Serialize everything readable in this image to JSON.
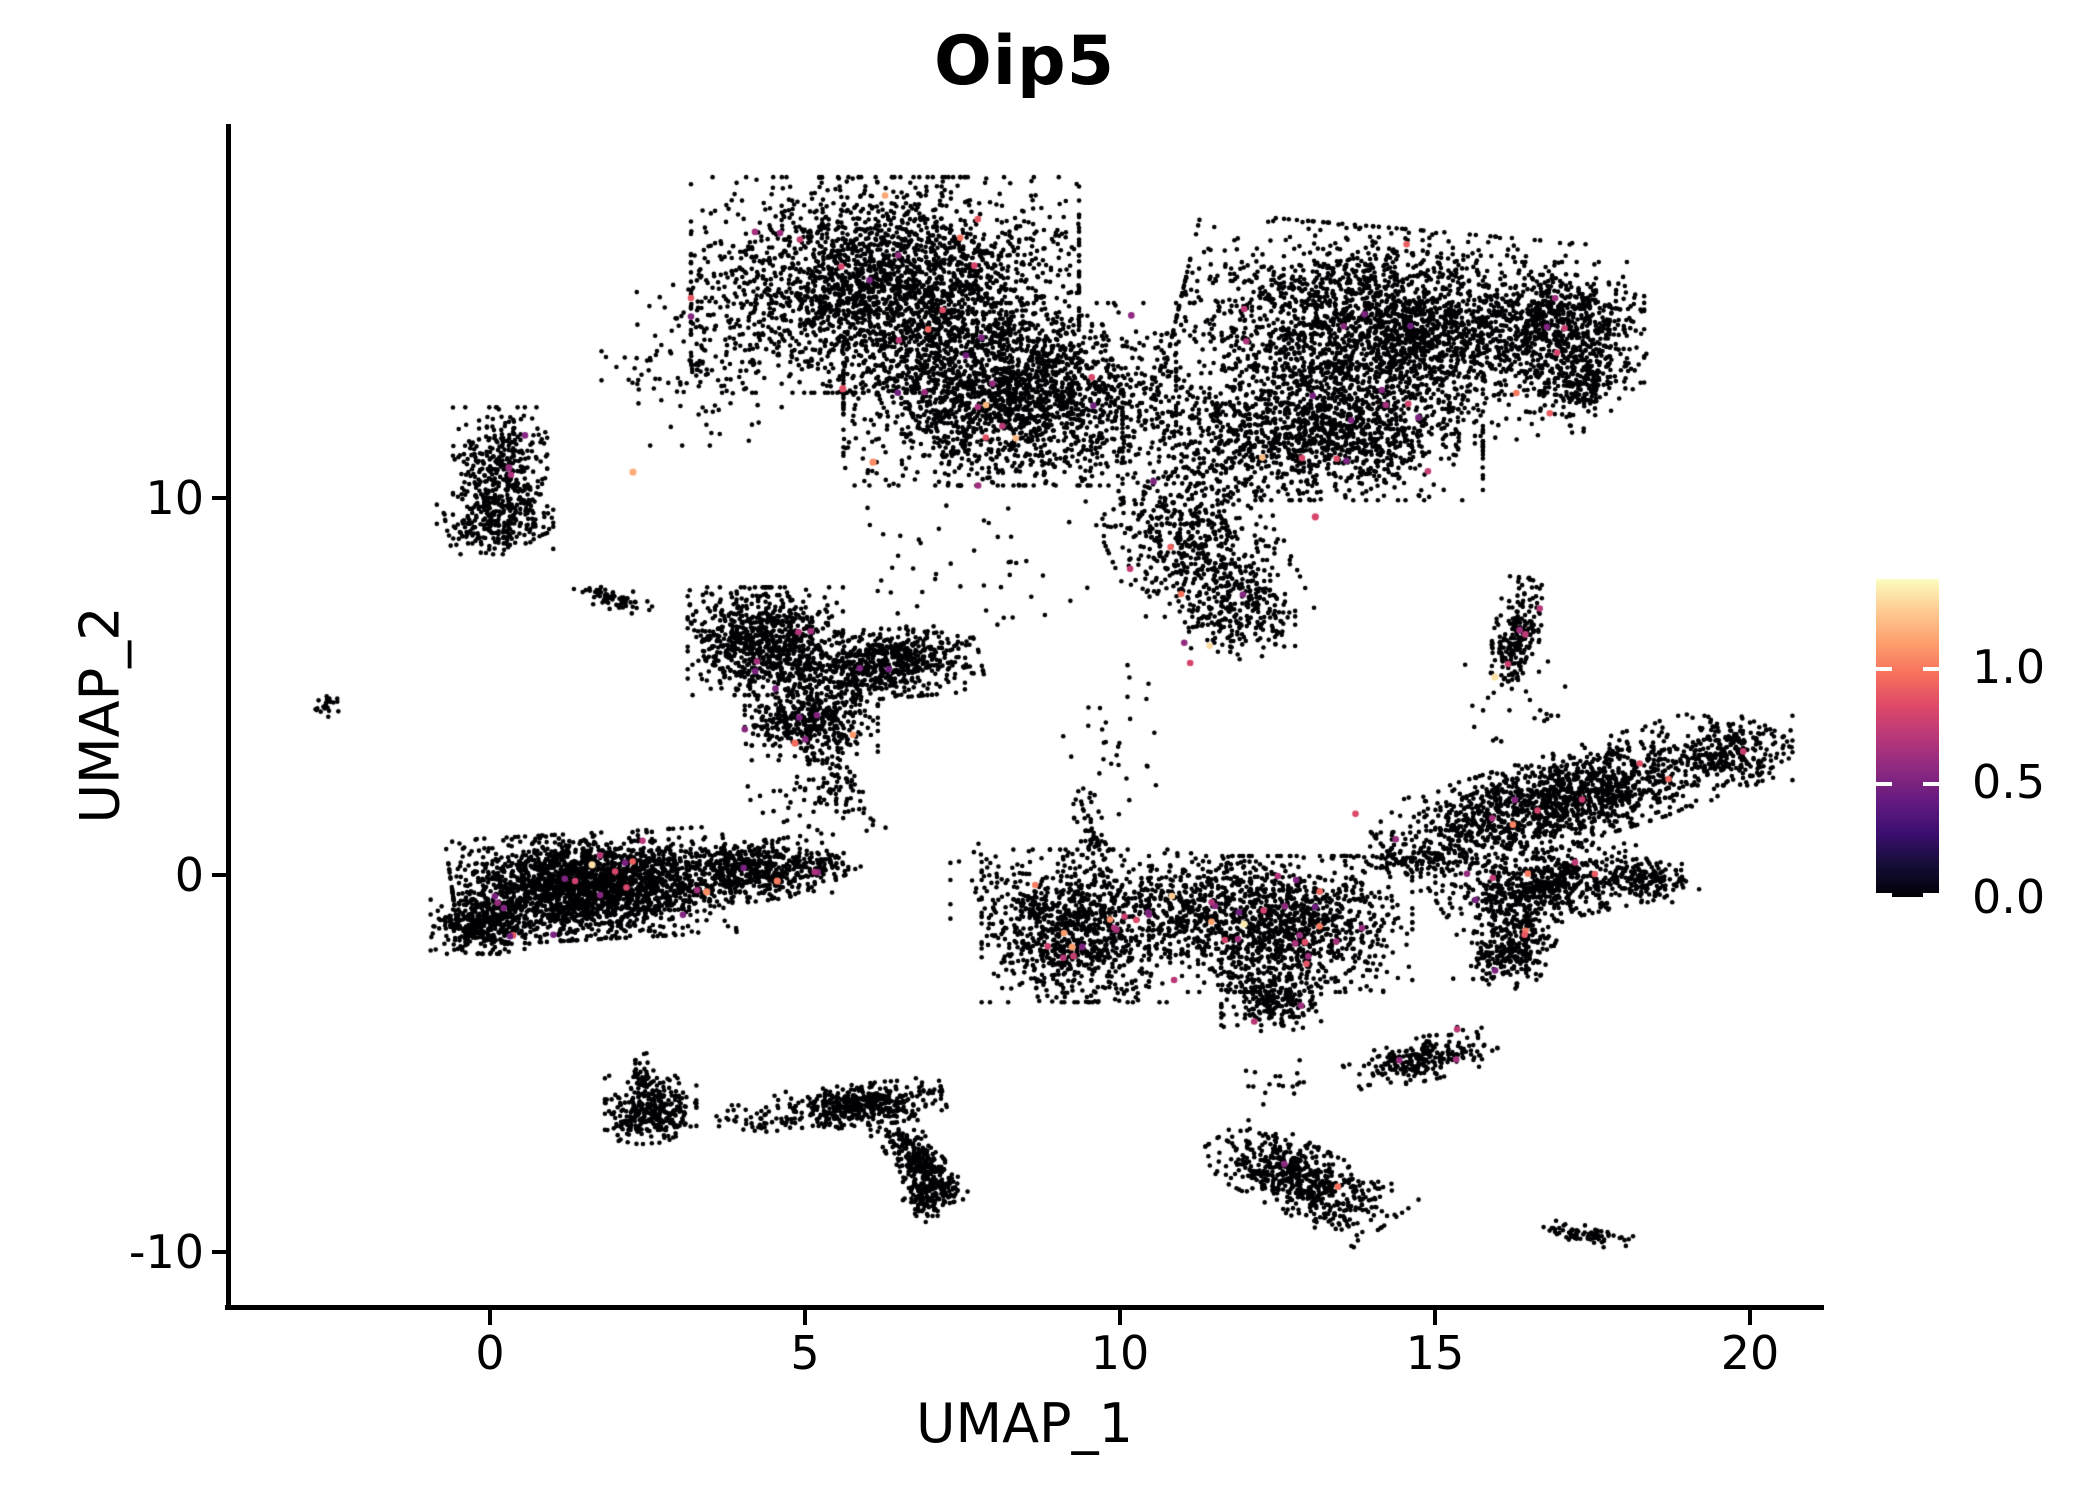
{
  "title": "Oip5",
  "axes": {
    "x_label": "UMAP_1",
    "y_label": "UMAP_2",
    "x_tick_labels": [
      "0",
      "5",
      "10",
      "15",
      "20"
    ],
    "x_tick_values": [
      0,
      5,
      10,
      15,
      20
    ],
    "y_tick_labels": [
      "10",
      "0",
      "-10"
    ],
    "y_tick_values": [
      10,
      0,
      -10
    ]
  },
  "colorbar": {
    "tick_labels": [
      "1.0",
      "0.5",
      "0.0"
    ],
    "tick_values": [
      1.0,
      0.5,
      0.0
    ],
    "vmin": 0.0,
    "vmax": 1.38,
    "colormap": "magma",
    "stops": [
      [
        0.0,
        "#000004"
      ],
      [
        0.1,
        "#140e36"
      ],
      [
        0.2,
        "#3b0f70"
      ],
      [
        0.3,
        "#641a80"
      ],
      [
        0.4,
        "#8c2981"
      ],
      [
        0.5,
        "#b73779"
      ],
      [
        0.6,
        "#de4968"
      ],
      [
        0.7,
        "#f7705c"
      ],
      [
        0.8,
        "#fe9f6d"
      ],
      [
        0.9,
        "#fecb92"
      ],
      [
        1.0,
        "#fcfdbf"
      ]
    ]
  },
  "style": {
    "background": "#ffffff",
    "axis_color": "#000000",
    "zero_point_color": "#000004"
  },
  "chart_data": {
    "type": "scatter",
    "title": "Oip5",
    "xlabel": "UMAP_1",
    "ylabel": "UMAP_2",
    "xlim": [
      -4.15,
      21.15
    ],
    "ylim": [
      -11.45,
      19.9
    ],
    "grid": false,
    "legend_position": "right-colorbar",
    "color_scale": {
      "min": 0.0,
      "max": 1.38,
      "colormap": "magma"
    },
    "n_points": 24800,
    "representation": "UMAP embedding approximated as gaussian clusters; most cells have expression 0 (black), sparse cells colored by expression",
    "clusters": [
      {
        "cx": 6.27,
        "cy": 15.65,
        "sx": 1.4,
        "sy": 1.3,
        "rot": 0,
        "n": 2600,
        "cf": 0.006
      },
      {
        "cx": 8.25,
        "cy": 12.75,
        "sx": 1.2,
        "sy": 1.1,
        "rot": 0,
        "n": 2100,
        "cf": 0.006
      },
      {
        "cx": 14.3,
        "cy": 14.5,
        "sx": 1.55,
        "sy": 1.2,
        "rot": -8,
        "n": 2600,
        "cf": 0.005
      },
      {
        "cx": 12.9,
        "cy": 11.7,
        "sx": 1.3,
        "sy": 0.8,
        "rot": 0,
        "n": 1400,
        "cf": 0.005
      },
      {
        "cx": 17.0,
        "cy": 14.5,
        "sx": 0.6,
        "sy": 0.8,
        "rot": 0,
        "n": 600,
        "cf": 0.004
      },
      {
        "cx": 17.4,
        "cy": 13.0,
        "sx": 0.28,
        "sy": 0.5,
        "rot": -20,
        "n": 160,
        "cf": 0
      },
      {
        "cx": 11.2,
        "cy": 8.75,
        "sx": 0.63,
        "sy": 0.95,
        "rot": 15,
        "n": 550,
        "cf": 0.01
      },
      {
        "cx": 11.9,
        "cy": 6.9,
        "sx": 0.4,
        "sy": 0.58,
        "rot": 0,
        "n": 220,
        "cf": 0.012
      },
      {
        "cx": 3.2,
        "cy": 13.7,
        "sx": 0.65,
        "sy": 1.05,
        "rot": 0,
        "n": 130,
        "cf": 0
      },
      {
        "cx": 0.16,
        "cy": 10.6,
        "sx": 0.34,
        "sy": 0.82,
        "rot": 0,
        "n": 420,
        "cf": 0.006
      },
      {
        "cx": 0.08,
        "cy": 9.3,
        "sx": 0.42,
        "sy": 0.36,
        "rot": 0,
        "n": 180,
        "cf": 0
      },
      {
        "cx": -2.57,
        "cy": 4.5,
        "sx": 0.1,
        "sy": 0.16,
        "rot": -25,
        "n": 22,
        "cf": 0
      },
      {
        "cx": 4.37,
        "cy": 6.2,
        "sx": 0.56,
        "sy": 0.65,
        "rot": 0,
        "n": 800,
        "cf": 0.006
      },
      {
        "cx": 6.2,
        "cy": 5.6,
        "sx": 0.72,
        "sy": 0.42,
        "rot": 8,
        "n": 700,
        "cf": 0.004
      },
      {
        "cx": 5.1,
        "cy": 4.1,
        "sx": 0.48,
        "sy": 0.48,
        "rot": 0,
        "n": 450,
        "cf": 0.007
      },
      {
        "cx": 5.5,
        "cy": 2.3,
        "sx": 0.25,
        "sy": 0.55,
        "rot": 15,
        "n": 80,
        "cf": 0
      },
      {
        "cx": 1.95,
        "cy": 7.35,
        "sx": 0.3,
        "sy": 0.13,
        "rot": -25,
        "n": 70,
        "cf": 0
      },
      {
        "cx": 1.6,
        "cy": -0.3,
        "sx": 1.0,
        "sy": 0.64,
        "rot": 5,
        "n": 2400,
        "cf": 0.004
      },
      {
        "cx": -0.15,
        "cy": -1.3,
        "sx": 0.36,
        "sy": 0.36,
        "rot": 0,
        "n": 350,
        "cf": 0.003
      },
      {
        "cx": 4.2,
        "cy": 0.1,
        "sx": 0.56,
        "sy": 0.36,
        "rot": 10,
        "n": 550,
        "cf": 0.005
      },
      {
        "cx": 5.4,
        "cy": 0.3,
        "sx": 0.22,
        "sy": 0.22,
        "rot": 0,
        "n": 45,
        "cf": 0
      },
      {
        "cx": 9.3,
        "cy": -1.35,
        "sx": 0.68,
        "sy": 0.92,
        "rot": 0,
        "n": 1000,
        "cf": 0.012
      },
      {
        "cx": 9.55,
        "cy": 1.2,
        "sx": 0.1,
        "sy": 0.62,
        "rot": 10,
        "n": 55,
        "cf": 0
      },
      {
        "cx": 12.55,
        "cy": -1.3,
        "sx": 0.95,
        "sy": 0.82,
        "rot": 0,
        "n": 1300,
        "cf": 0.018
      },
      {
        "cx": 12.4,
        "cy": -3.3,
        "sx": 0.36,
        "sy": 0.38,
        "rot": 0,
        "n": 220,
        "cf": 0.02
      },
      {
        "cx": 17.0,
        "cy": 2.0,
        "sx": 1.4,
        "sy": 0.52,
        "rot": 27,
        "n": 1500,
        "cf": 0.008
      },
      {
        "cx": 19.75,
        "cy": 3.3,
        "sx": 0.42,
        "sy": 0.42,
        "rot": 0,
        "n": 240,
        "cf": 0.004
      },
      {
        "cx": 16.75,
        "cy": -0.3,
        "sx": 0.8,
        "sy": 0.42,
        "rot": 20,
        "n": 650,
        "cf": 0.01
      },
      {
        "cx": 18.4,
        "cy": -0.15,
        "sx": 0.36,
        "sy": 0.26,
        "rot": 0,
        "n": 140,
        "cf": 0
      },
      {
        "cx": 16.2,
        "cy": -1.9,
        "sx": 0.3,
        "sy": 0.48,
        "rot": -15,
        "n": 280,
        "cf": 0.01
      },
      {
        "cx": 14.85,
        "cy": 0.4,
        "sx": 0.58,
        "sy": 0.2,
        "rot": 5,
        "n": 120,
        "cf": 0.01
      },
      {
        "cx": 11.0,
        "cy": -0.7,
        "sx": 0.48,
        "sy": 0.58,
        "rot": 0,
        "n": 170,
        "cf": 0.012
      },
      {
        "cx": 16.3,
        "cy": 6.4,
        "sx": 0.17,
        "sy": 0.68,
        "rot": -8,
        "n": 220,
        "cf": 0.015
      },
      {
        "cx": 14.8,
        "cy": -4.9,
        "sx": 0.55,
        "sy": 0.25,
        "rot": 25,
        "n": 240,
        "cf": 0.006
      },
      {
        "cx": 2.55,
        "cy": -6.25,
        "sx": 0.33,
        "sy": 0.42,
        "rot": 0,
        "n": 330,
        "cf": 0.004
      },
      {
        "cx": 2.4,
        "cy": -5.3,
        "sx": 0.09,
        "sy": 0.26,
        "rot": 0,
        "n": 40,
        "cf": 0
      },
      {
        "cx": 4.3,
        "cy": -6.5,
        "sx": 0.32,
        "sy": 0.2,
        "rot": 0,
        "n": 50,
        "cf": 0
      },
      {
        "cx": 5.9,
        "cy": -6.1,
        "sx": 0.6,
        "sy": 0.25,
        "rot": 10,
        "n": 450,
        "cf": 0
      },
      {
        "cx": 6.8,
        "cy": -7.6,
        "sx": 0.55,
        "sy": 0.18,
        "rot": -65,
        "n": 280,
        "cf": 0
      },
      {
        "cx": 6.95,
        "cy": -8.5,
        "sx": 0.18,
        "sy": 0.32,
        "rot": 0,
        "n": 130,
        "cf": 0
      },
      {
        "cx": 12.9,
        "cy": -8.1,
        "sx": 0.8,
        "sy": 0.38,
        "rot": -40,
        "n": 600,
        "cf": 0.003
      },
      {
        "cx": 17.4,
        "cy": -9.55,
        "sx": 0.33,
        "sy": 0.11,
        "rot": -15,
        "n": 80,
        "cf": 0
      },
      {
        "cx": 7.5,
        "cy": 8.3,
        "sx": 1.3,
        "sy": 1.0,
        "rot": 0,
        "n": 50,
        "cf": 0
      },
      {
        "cx": 9.8,
        "cy": 3.7,
        "sx": 0.35,
        "sy": 0.95,
        "rot": 0,
        "n": 30,
        "cf": 0
      },
      {
        "cx": 4.9,
        "cy": 1.7,
        "sx": 0.5,
        "sy": 0.45,
        "rot": 0,
        "n": 28,
        "cf": 0
      },
      {
        "cx": 16.5,
        "cy": 4.6,
        "sx": 0.5,
        "sy": 0.8,
        "rot": 0,
        "n": 22,
        "cf": 0
      },
      {
        "cx": 8.1,
        "cy": -0.15,
        "sx": 0.36,
        "sy": 0.52,
        "rot": 0,
        "n": 40,
        "cf": 0.01
      },
      {
        "cx": 12.6,
        "cy": -5.5,
        "sx": 0.32,
        "sy": 0.32,
        "rot": 0,
        "n": 18,
        "cf": 0
      }
    ],
    "highlight_points": [
      {
        "x": 1.62,
        "y": 0.27,
        "value": 1.3
      },
      {
        "x": 3.44,
        "y": -0.45,
        "value": 1.05
      },
      {
        "x": 4.56,
        "y": -0.16,
        "value": 1.0
      },
      {
        "x": 6.08,
        "y": 10.95,
        "value": 1.05
      },
      {
        "x": 2.27,
        "y": 10.69,
        "value": 1.15
      },
      {
        "x": 9.24,
        "y": -1.91,
        "value": 1.1
      },
      {
        "x": 4.84,
        "y": 3.5,
        "value": 0.95
      },
      {
        "x": 11.97,
        "y": -1.3,
        "value": 1.33
      },
      {
        "x": 15.95,
        "y": 5.25,
        "value": 1.3
      },
      {
        "x": 5.6,
        "y": 12.9,
        "value": 0.85
      },
      {
        "x": 13.1,
        "y": 9.5,
        "value": 0.8
      },
      {
        "x": 0.3,
        "y": 10.8,
        "value": 0.6
      }
    ]
  }
}
